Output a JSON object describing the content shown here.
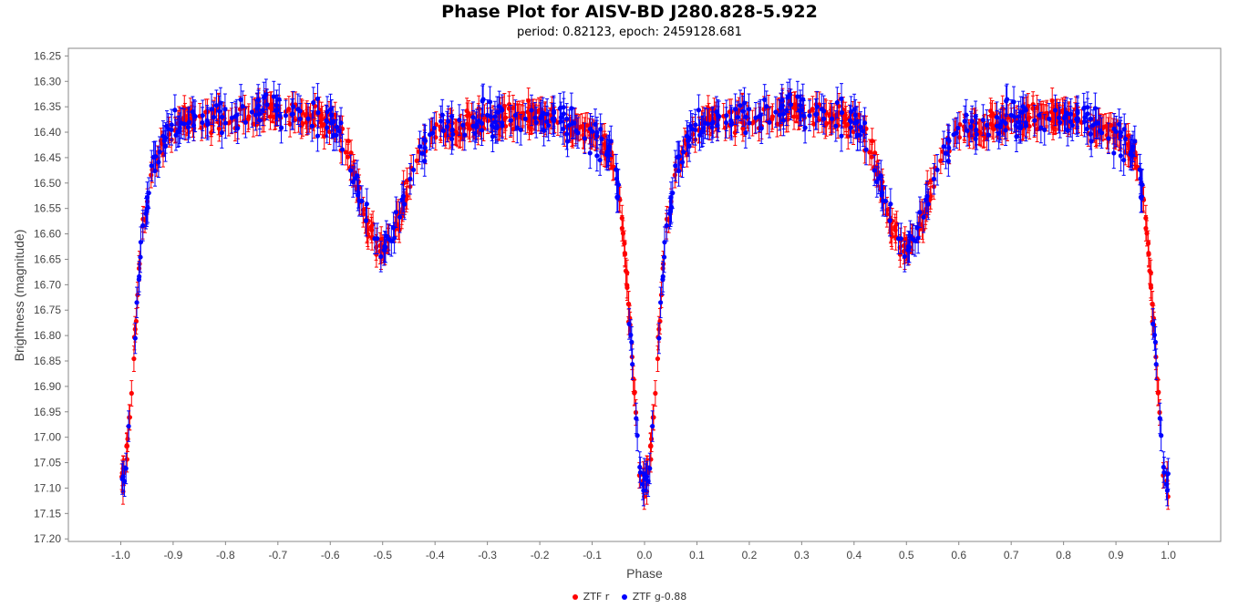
{
  "chart_data": {
    "type": "scatter",
    "title": "Phase Plot for AISV-BD J280.828-5.922",
    "subtitle": "period: 0.82123, epoch: 2459128.681",
    "xlabel": "Phase",
    "ylabel": "Brightness (magnitude)",
    "xlim": [
      -1.1,
      1.1
    ],
    "ylim": [
      17.205,
      16.235
    ],
    "y_inverted": true,
    "x_ticks": [
      "-1.0",
      "-0.9",
      "-0.8",
      "-0.7",
      "-0.6",
      "-0.5",
      "-0.4",
      "-0.3",
      "-0.2",
      "-0.1",
      "0.0",
      "0.1",
      "0.2",
      "0.3",
      "0.4",
      "0.5",
      "0.6",
      "0.7",
      "0.8",
      "0.9",
      "1.0"
    ],
    "y_ticks": [
      "16.25",
      "16.30",
      "16.35",
      "16.40",
      "16.45",
      "16.50",
      "16.55",
      "16.60",
      "16.65",
      "16.70",
      "16.75",
      "16.80",
      "16.85",
      "16.90",
      "16.95",
      "17.00",
      "17.05",
      "17.10",
      "17.15",
      "17.20"
    ],
    "grid": false,
    "legend_placement": "bottom",
    "light_curve_template": {
      "phase": [
        0.0,
        0.01,
        0.02,
        0.025,
        0.03,
        0.04,
        0.06,
        0.09,
        0.12,
        0.2,
        0.3,
        0.4,
        0.43,
        0.45,
        0.47,
        0.5,
        0.53,
        0.55,
        0.57,
        0.6,
        0.7,
        0.8,
        0.9,
        0.94,
        0.96,
        0.97,
        0.98,
        0.99,
        1.0
      ],
      "magnitude": [
        17.11,
        17.05,
        16.92,
        16.83,
        16.75,
        16.6,
        16.47,
        16.4,
        16.38,
        16.37,
        16.36,
        16.38,
        16.42,
        16.5,
        16.58,
        16.63,
        16.58,
        16.5,
        16.43,
        16.4,
        16.37,
        16.37,
        16.4,
        16.45,
        16.6,
        16.75,
        16.9,
        17.05,
        17.11
      ]
    },
    "series": [
      {
        "name": "ZTF r",
        "color": "#ff0000",
        "count": 420,
        "scatter": 0.022,
        "errorbar": 0.025
      },
      {
        "name": "ZTF g-0.88",
        "color": "#0000ff",
        "count": 260,
        "scatter": 0.027,
        "errorbar": 0.03
      }
    ]
  }
}
